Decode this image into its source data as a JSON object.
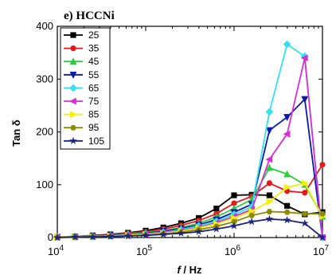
{
  "chart_data": {
    "type": "line",
    "title": "e) HCCNi",
    "xlabel": "f / Hz",
    "ylabel": "Tan δ",
    "xscale": "log",
    "xlim": [
      10000,
      10000000
    ],
    "ylim": [
      0,
      400
    ],
    "xticks": [
      {
        "value": 10000,
        "base": "10",
        "exp": "4"
      },
      {
        "value": 100000,
        "base": "10",
        "exp": "5"
      },
      {
        "value": 1000000,
        "base": "10",
        "exp": "6"
      },
      {
        "value": 10000000,
        "base": "10",
        "exp": "7"
      }
    ],
    "yticks": [
      0,
      100,
      200,
      300,
      400
    ],
    "legend_position": "top-left",
    "x": [
      10000,
      15850,
      25120,
      39810,
      63100,
      100000,
      158500,
      251200,
      398100,
      631000,
      1000000,
      1585000,
      2512000,
      3981000,
      6310000,
      10000000
    ],
    "series": [
      {
        "name": "25",
        "color": "#000000",
        "marker": "square",
        "values": [
          1,
          2,
          4,
          6,
          9,
          13,
          19,
          27,
          37,
          55,
          80,
          81,
          80,
          60,
          44,
          48
        ]
      },
      {
        "name": "35",
        "color": "#e41a1c",
        "marker": "circle",
        "values": [
          1,
          2,
          3,
          5,
          8,
          11,
          16,
          23,
          32,
          45,
          65,
          78,
          103,
          88,
          85,
          138
        ]
      },
      {
        "name": "45",
        "color": "#2ecc40",
        "marker": "triangle-up",
        "values": [
          1,
          2,
          3,
          4,
          6,
          9,
          13,
          19,
          27,
          39,
          55,
          72,
          132,
          120,
          100,
          40
        ]
      },
      {
        "name": "55",
        "color": "#0a1aa8",
        "marker": "triangle-down",
        "values": [
          1,
          1,
          2,
          4,
          5,
          8,
          12,
          17,
          24,
          34,
          48,
          63,
          203,
          228,
          262,
          0
        ]
      },
      {
        "name": "65",
        "color": "#33e0f0",
        "marker": "diamond",
        "values": [
          1,
          1,
          2,
          3,
          5,
          7,
          10,
          15,
          22,
          31,
          44,
          58,
          238,
          366,
          343,
          0
        ]
      },
      {
        "name": "75",
        "color": "#d62fd6",
        "marker": "triangle-left",
        "values": [
          1,
          1,
          2,
          3,
          4,
          6,
          9,
          13,
          19,
          28,
          40,
          53,
          148,
          196,
          340,
          0
        ]
      },
      {
        "name": "85",
        "color": "#f5f000",
        "marker": "triangle-right",
        "values": [
          1,
          1,
          2,
          3,
          4,
          6,
          8,
          12,
          18,
          26,
          37,
          50,
          68,
          95,
          103,
          40
        ]
      },
      {
        "name": "95",
        "color": "#8b8b00",
        "marker": "hexagon",
        "values": [
          0,
          1,
          2,
          2,
          3,
          5,
          7,
          10,
          15,
          21,
          30,
          42,
          49,
          48,
          45,
          45
        ]
      },
      {
        "name": "105",
        "color": "#1a237e",
        "marker": "star",
        "values": [
          0,
          1,
          1,
          2,
          3,
          4,
          6,
          8,
          11,
          16,
          22,
          30,
          35,
          33,
          27,
          0
        ]
      }
    ]
  }
}
